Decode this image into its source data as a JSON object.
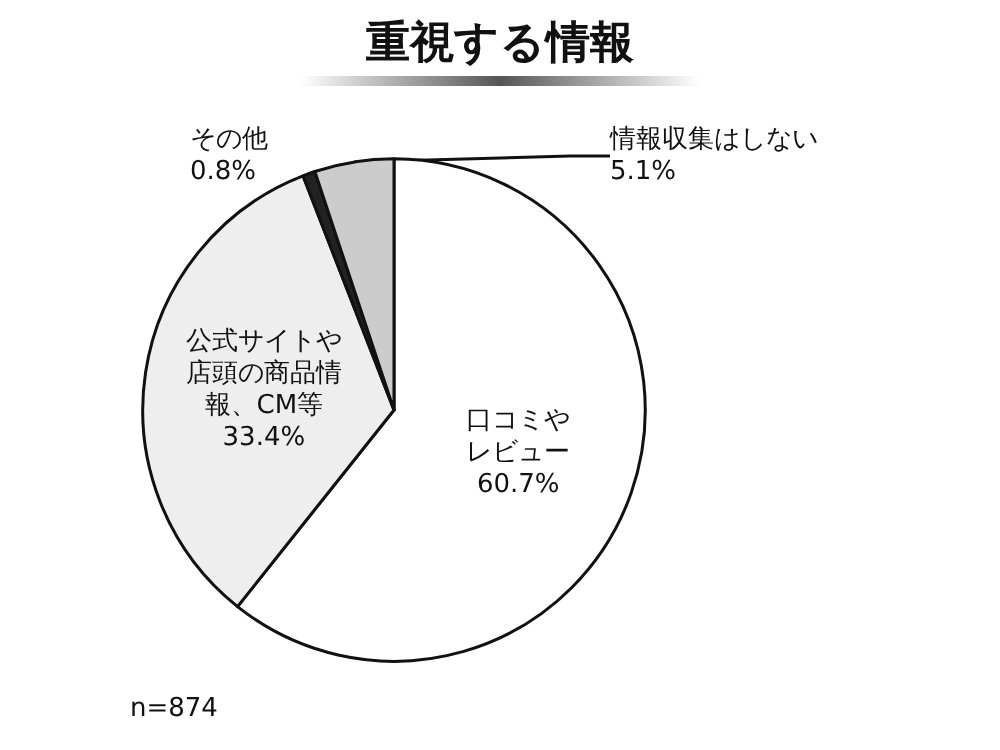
{
  "chart_data": {
    "type": "pie",
    "title": "重視する情報",
    "categories": [
      "口コミやレビュー",
      "公式サイトや店頭の商品情報、CM等",
      "その他",
      "情報収集はしない"
    ],
    "values": [
      60.7,
      33.4,
      0.8,
      5.1
    ],
    "colors": [
      "#ffffff",
      "#eeeeee",
      "#222222",
      "#cccccc"
    ],
    "value_labels": [
      "60.7%",
      "33.4%",
      "0.8%",
      "5.1%"
    ],
    "legend": false,
    "annotations": [
      "n=874"
    ]
  }
}
